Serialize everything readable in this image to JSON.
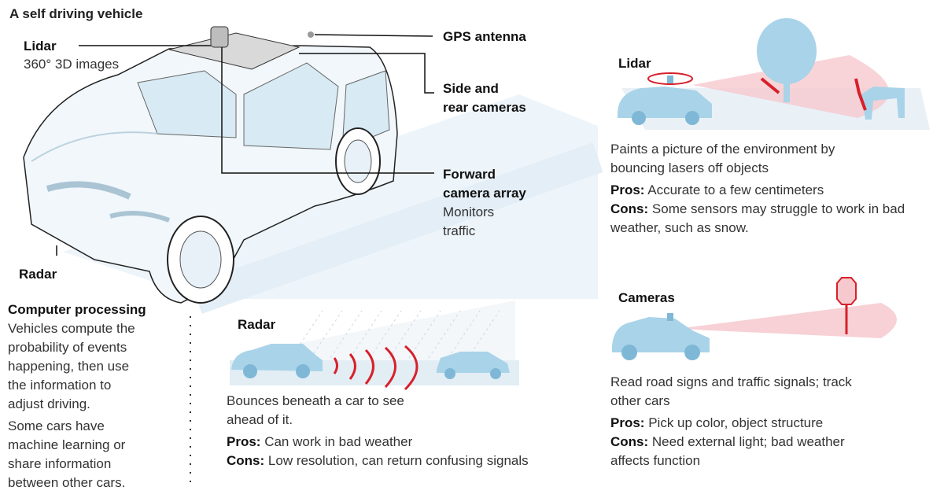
{
  "title": "A self driving vehicle",
  "callouts": {
    "lidar_title": "Lidar",
    "lidar_sub": "360° 3D images",
    "gps": "GPS antenna",
    "side_cams": [
      "Side and",
      "rear cameras"
    ],
    "forward": [
      "Forward",
      "camera array"
    ],
    "forward_sub": [
      "Monitors",
      "traffic"
    ],
    "radar": "Radar"
  },
  "computer": {
    "title": "Computer processing",
    "p1": [
      "Vehicles compute the",
      "probability of events",
      "happening, then use",
      "the information to",
      "adjust driving."
    ],
    "p2": [
      "Some cars have",
      "machine learning or",
      "share information",
      "between other cars."
    ]
  },
  "radar_panel": {
    "title": "Radar",
    "desc": [
      "Bounces beneath a car to see",
      "ahead of it."
    ],
    "pros_label": "Pros:",
    "pros": "Can work in bad weather",
    "cons_label": "Cons:",
    "cons": "Low resolution, can return confusing signals"
  },
  "lidar_panel": {
    "title": "Lidar",
    "desc": [
      "Paints a picture of the environment by",
      "bouncing lasers off objects"
    ],
    "pros_label": "Pros:",
    "pros": "Accurate to a few centimeters",
    "cons_label": "Cons:",
    "cons": "Some sensors may struggle to work in bad",
    "cons2": "weather, such as snow."
  },
  "cameras_panel": {
    "title": "Cameras",
    "desc": [
      "Read road signs and traffic signals; track",
      "other cars"
    ],
    "pros_label": "Pros:",
    "pros": "Pick up color, object structure",
    "cons_label": "Cons:",
    "cons": "Need external light; bad weather",
    "cons2": "affects function"
  },
  "colors": {
    "accent": "#d7202b",
    "car": "#a9d3e8",
    "car_dark": "#7fb8d6",
    "beam": "#f6c9ce",
    "ground": "#dfeef7"
  }
}
